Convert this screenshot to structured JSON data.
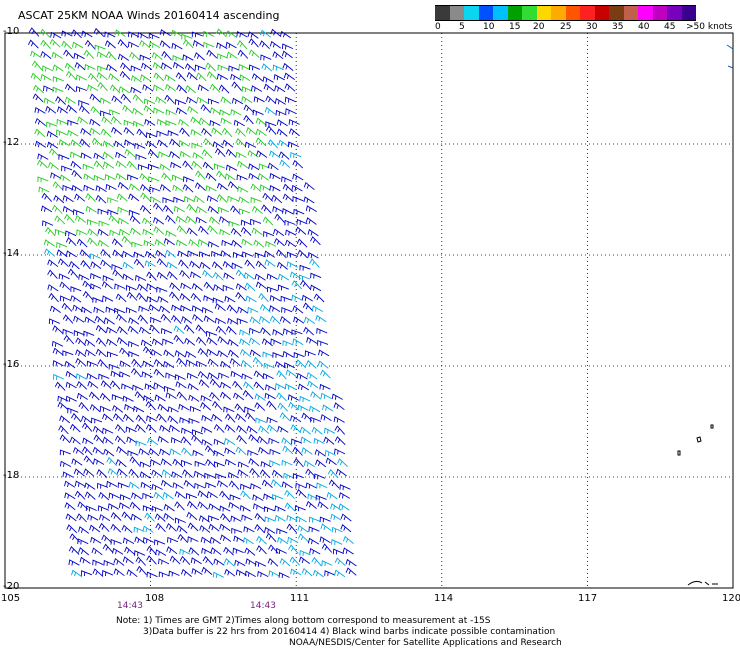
{
  "title": "ASCAT 25KM NOAA Winds 20160414 ascending",
  "legend": {
    "colors": [
      "#3a3a3a",
      "#8a8a8a",
      "#0ad6f0",
      "#0050ff",
      "#00c0ff",
      "#00a000",
      "#32dc32",
      "#ffd700",
      "#ffaa00",
      "#ff5500",
      "#ff2020",
      "#c80000",
      "#7a3c14",
      "#c0604a",
      "#ff00ff",
      "#c000c0",
      "#7a00c0",
      "#3a0090"
    ],
    "labels": [
      "0",
      "5",
      "10",
      "15",
      "20",
      "25",
      "30",
      "35",
      "40",
      "45",
      ">50 knots"
    ]
  },
  "axes": {
    "lat_labels": [
      "-10",
      "-12",
      "-14",
      "-16",
      "-18",
      "-20"
    ],
    "lon_labels": [
      "105",
      "108",
      "111",
      "114",
      "117",
      "120"
    ]
  },
  "times": [
    "14:43",
    "14:43"
  ],
  "notes": {
    "line1": "Note: 1) Times are GMT 2)Times along bottom correspond to measurement at -15S",
    "line2": "3)Data buffer is 22 hrs from 20160414 4) Black wind barbs indicate possible contamination",
    "line3": "NOAA/NESDIS/Center for Satellite Applications and Research"
  },
  "swath": {
    "corners_latlon": [
      [
        -10.0,
        105.6
      ],
      [
        -10.0,
        111.0
      ],
      [
        -20.0,
        112.5
      ],
      [
        -20.0,
        106.5
      ]
    ],
    "wind_speed_range_knots": [
      10,
      20
    ],
    "barb_colors": {
      "blue": "#0000c8",
      "cyan": "#00a8e0",
      "green": "#22cc22"
    }
  }
}
